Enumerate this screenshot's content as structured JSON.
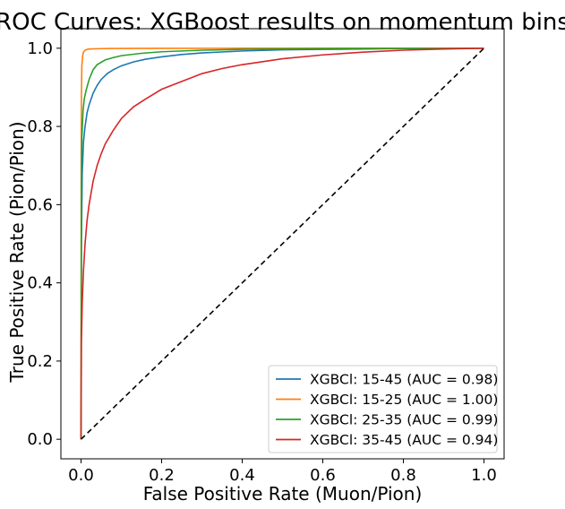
{
  "chart_data": {
    "type": "line",
    "title": "ROC Curves: XGBoost results on momentum bins",
    "xlabel": "False Positive Rate (Muon/Pion)",
    "ylabel": "True Positive Rate (Pion/Pion)",
    "xlim": [
      -0.05,
      1.05
    ],
    "ylim": [
      -0.05,
      1.05
    ],
    "xticks": [
      "0.0",
      "0.2",
      "0.4",
      "0.6",
      "0.8",
      "1.0"
    ],
    "yticks": [
      "0.0",
      "0.2",
      "0.4",
      "0.6",
      "0.8",
      "1.0"
    ],
    "grid": false,
    "legend_position": "lower-right",
    "series": [
      {
        "name": "XGBCl: 15-45 (AUC = 0.98)",
        "color": "#1f77b4",
        "x": [
          0,
          0.001,
          0.003,
          0.006,
          0.01,
          0.015,
          0.02,
          0.03,
          0.04,
          0.05,
          0.065,
          0.08,
          0.1,
          0.13,
          0.16,
          0.2,
          0.25,
          0.3,
          0.4,
          0.5,
          0.6,
          0.7,
          0.8,
          0.9,
          1.0
        ],
        "y": [
          0,
          0.5,
          0.68,
          0.76,
          0.8,
          0.835,
          0.855,
          0.885,
          0.905,
          0.92,
          0.935,
          0.945,
          0.955,
          0.965,
          0.972,
          0.978,
          0.984,
          0.988,
          0.993,
          0.996,
          0.997,
          0.998,
          0.999,
          0.9995,
          1.0
        ]
      },
      {
        "name": "XGBCl: 15-25 (AUC = 1.00)",
        "color": "#ff7f0e",
        "x": [
          0,
          0.0005,
          0.001,
          0.002,
          0.004,
          0.006,
          0.01,
          0.015,
          0.02,
          0.05,
          0.1,
          0.2,
          0.4,
          0.6,
          0.8,
          1.0
        ],
        "y": [
          0,
          0.7,
          0.88,
          0.955,
          0.98,
          0.99,
          0.995,
          0.997,
          0.998,
          0.999,
          0.9995,
          0.9997,
          0.9999,
          1.0,
          1.0,
          1.0
        ]
      },
      {
        "name": "XGBCl: 25-35 (AUC = 0.99)",
        "color": "#2ca02c",
        "x": [
          0,
          0.001,
          0.002,
          0.005,
          0.008,
          0.012,
          0.02,
          0.03,
          0.04,
          0.06,
          0.08,
          0.1,
          0.15,
          0.2,
          0.3,
          0.4,
          0.5,
          0.6,
          0.8,
          1.0
        ],
        "y": [
          0,
          0.65,
          0.77,
          0.84,
          0.87,
          0.89,
          0.92,
          0.945,
          0.958,
          0.97,
          0.976,
          0.981,
          0.987,
          0.991,
          0.995,
          0.997,
          0.998,
          0.999,
          0.9995,
          1.0
        ]
      },
      {
        "name": "XGBCl: 35-45 (AUC = 0.94)",
        "color": "#d62728",
        "x": [
          0,
          0.001,
          0.003,
          0.006,
          0.01,
          0.015,
          0.02,
          0.03,
          0.04,
          0.05,
          0.06,
          0.08,
          0.1,
          0.13,
          0.16,
          0.2,
          0.25,
          0.3,
          0.35,
          0.4,
          0.5,
          0.6,
          0.7,
          0.8,
          0.9,
          1.0
        ],
        "y": [
          0,
          0.25,
          0.35,
          0.43,
          0.5,
          0.56,
          0.6,
          0.66,
          0.7,
          0.73,
          0.755,
          0.79,
          0.82,
          0.85,
          0.87,
          0.895,
          0.915,
          0.935,
          0.948,
          0.958,
          0.973,
          0.983,
          0.99,
          0.995,
          0.998,
          1.0
        ]
      }
    ],
    "reference_line": {
      "x": [
        0,
        1
      ],
      "y": [
        0,
        1
      ],
      "color": "#000000",
      "style": "dashed"
    }
  }
}
